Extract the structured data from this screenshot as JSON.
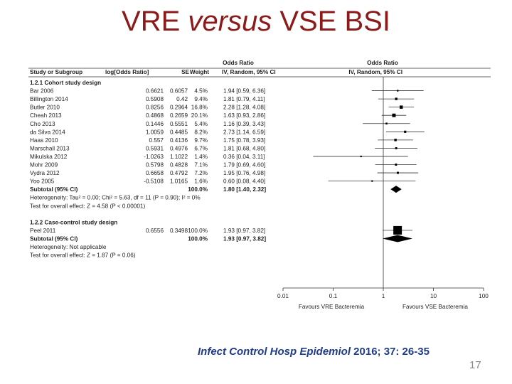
{
  "slide": {
    "title_part1": "VRE ",
    "title_italic": "versus",
    "title_part2": " VSE BSI",
    "citation_journal": "Infect Control Hosp Epidemiol",
    "citation_rest": " 2016; 37: 26-35",
    "slide_number": "17"
  },
  "forest": {
    "header_group_left": "Odds Ratio",
    "header_group_right": "Odds Ratio",
    "col_study": "Study or Subgroup",
    "col_logor": "log[Odds Ratio]",
    "col_se": "SE",
    "col_weight": "Weight",
    "col_ci_left": "IV, Random, 95% CI",
    "col_ci_right": "IV, Random, 95% CI",
    "axis_ticks": [
      "0.01",
      "0.1",
      "1",
      "10",
      "100"
    ],
    "favours_left": "Favours VRE Bacteremia",
    "favours_right": "Favours VSE Bacteremia"
  },
  "chart_data": {
    "type": "forest",
    "x_scale": "log",
    "xlim": [
      0.01,
      100
    ],
    "groups": [
      {
        "title": "1.2.1 Cohort study design",
        "studies": [
          {
            "name": "Bar 2006",
            "log_or": "0.6621",
            "se": "0.6057",
            "weight": "4.5%",
            "or_text": "1.94 [0.59, 6.36]",
            "or": 1.94,
            "lo": 0.59,
            "hi": 6.36
          },
          {
            "name": "Billington 2014",
            "log_or": "0.5908",
            "se": "0.42",
            "weight": "9.4%",
            "or_text": "1.81 [0.79, 4.11]",
            "or": 1.81,
            "lo": 0.79,
            "hi": 4.11
          },
          {
            "name": "Butler 2010",
            "log_or": "0.8256",
            "se": "0.2964",
            "weight": "16.8%",
            "or_text": "2.28 [1.28, 4.08]",
            "or": 2.28,
            "lo": 1.28,
            "hi": 4.08
          },
          {
            "name": "Cheah 2013",
            "log_or": "0.4868",
            "se": "0.2659",
            "weight": "20.1%",
            "or_text": "1.63 [0.93, 2.86]",
            "or": 1.63,
            "lo": 0.93,
            "hi": 2.86
          },
          {
            "name": "Cho 2013",
            "log_or": "0.1446",
            "se": "0.5551",
            "weight": "5.4%",
            "or_text": "1.16 [0.39, 3.43]",
            "or": 1.16,
            "lo": 0.39,
            "hi": 3.43
          },
          {
            "name": "da Silva 2014",
            "log_or": "1.0059",
            "se": "0.4485",
            "weight": "8.2%",
            "or_text": "2.73 [1.14, 6.59]",
            "or": 2.73,
            "lo": 1.14,
            "hi": 6.59
          },
          {
            "name": "Haas 2010",
            "log_or": "0.557",
            "se": "0.4136",
            "weight": "9.7%",
            "or_text": "1.75 [0.78, 3.93]",
            "or": 1.75,
            "lo": 0.78,
            "hi": 3.93
          },
          {
            "name": "Marschall 2013",
            "log_or": "0.5931",
            "se": "0.4976",
            "weight": "6.7%",
            "or_text": "1.81 [0.68, 4.80]",
            "or": 1.81,
            "lo": 0.68,
            "hi": 4.8
          },
          {
            "name": "Mikulska 2012",
            "log_or": "-1.0263",
            "se": "1.1022",
            "weight": "1.4%",
            "or_text": "0.36 [0.04, 3.11]",
            "or": 0.36,
            "lo": 0.04,
            "hi": 3.11
          },
          {
            "name": "Mohr 2009",
            "log_or": "0.5798",
            "se": "0.4828",
            "weight": "7.1%",
            "or_text": "1.79 [0.69, 4.60]",
            "or": 1.79,
            "lo": 0.69,
            "hi": 4.6
          },
          {
            "name": "Vydra 2012",
            "log_or": "0.6658",
            "se": "0.4792",
            "weight": "7.2%",
            "or_text": "1.95 [0.76, 4.98]",
            "or": 1.95,
            "lo": 0.76,
            "hi": 4.98
          },
          {
            "name": "Yoo 2005",
            "log_or": "-0.5108",
            "se": "1.0165",
            "weight": "1.6%",
            "or_text": "0.60 [0.08, 4.40]",
            "or": 0.6,
            "lo": 0.08,
            "hi": 4.4
          }
        ],
        "subtotal": {
          "label": "Subtotal (95% CI)",
          "weight": "100.0%",
          "or_text": "1.80 [1.40, 2.32]",
          "or": 1.8,
          "lo": 1.4,
          "hi": 2.32
        },
        "heterogeneity": "Heterogeneity: Tau² = 0.00; Chi² = 5.63, df = 11 (P = 0.90); I² = 0%",
        "overall_effect": "Test for overall effect: Z = 4.58 (P < 0.00001)"
      },
      {
        "title": "1.2.2 Case-control study design",
        "studies": [
          {
            "name": "Peel 2011",
            "log_or": "0.6556",
            "se": "0.3498",
            "weight": "100.0%",
            "or_text": "1.93 [0.97, 3.82]",
            "or": 1.93,
            "lo": 0.97,
            "hi": 3.82
          }
        ],
        "subtotal": {
          "label": "Subtotal (95% CI)",
          "weight": "100.0%",
          "or_text": "1.93 [0.97, 3.82]",
          "or": 1.93,
          "lo": 0.97,
          "hi": 3.82
        },
        "heterogeneity": "Heterogeneity: Not applicable",
        "overall_effect": "Test for overall effect: Z = 1.87 (P = 0.06)"
      }
    ]
  }
}
